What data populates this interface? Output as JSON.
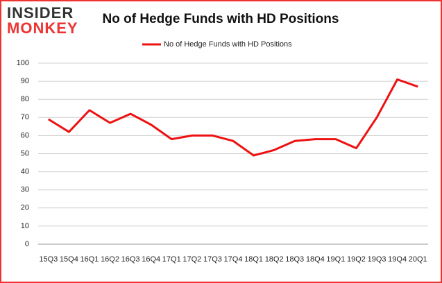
{
  "logo": {
    "line1": "INSIDER",
    "line2": "MONKEY"
  },
  "chart_data": {
    "type": "line",
    "title": "No of Hedge Funds with HD Positions",
    "categories": [
      "15Q3",
      "15Q4",
      "16Q1",
      "16Q2",
      "16Q3",
      "16Q4",
      "17Q1",
      "17Q2",
      "17Q3",
      "17Q4",
      "18Q1",
      "18Q2",
      "18Q3",
      "18Q4",
      "19Q1",
      "19Q2",
      "19Q3",
      "19Q4",
      "20Q1"
    ],
    "series": [
      {
        "name": "No of Hedge Funds with HD Positions",
        "color": "#ee1111",
        "values": [
          69,
          62,
          74,
          67,
          72,
          66,
          58,
          60,
          60,
          57,
          49,
          52,
          57,
          58,
          58,
          53,
          70,
          91,
          87
        ]
      }
    ],
    "ylim": [
      0,
      100
    ],
    "yticks": [
      0,
      10,
      20,
      30,
      40,
      50,
      60,
      70,
      80,
      90,
      100
    ],
    "grid": true,
    "legend": "top"
  }
}
